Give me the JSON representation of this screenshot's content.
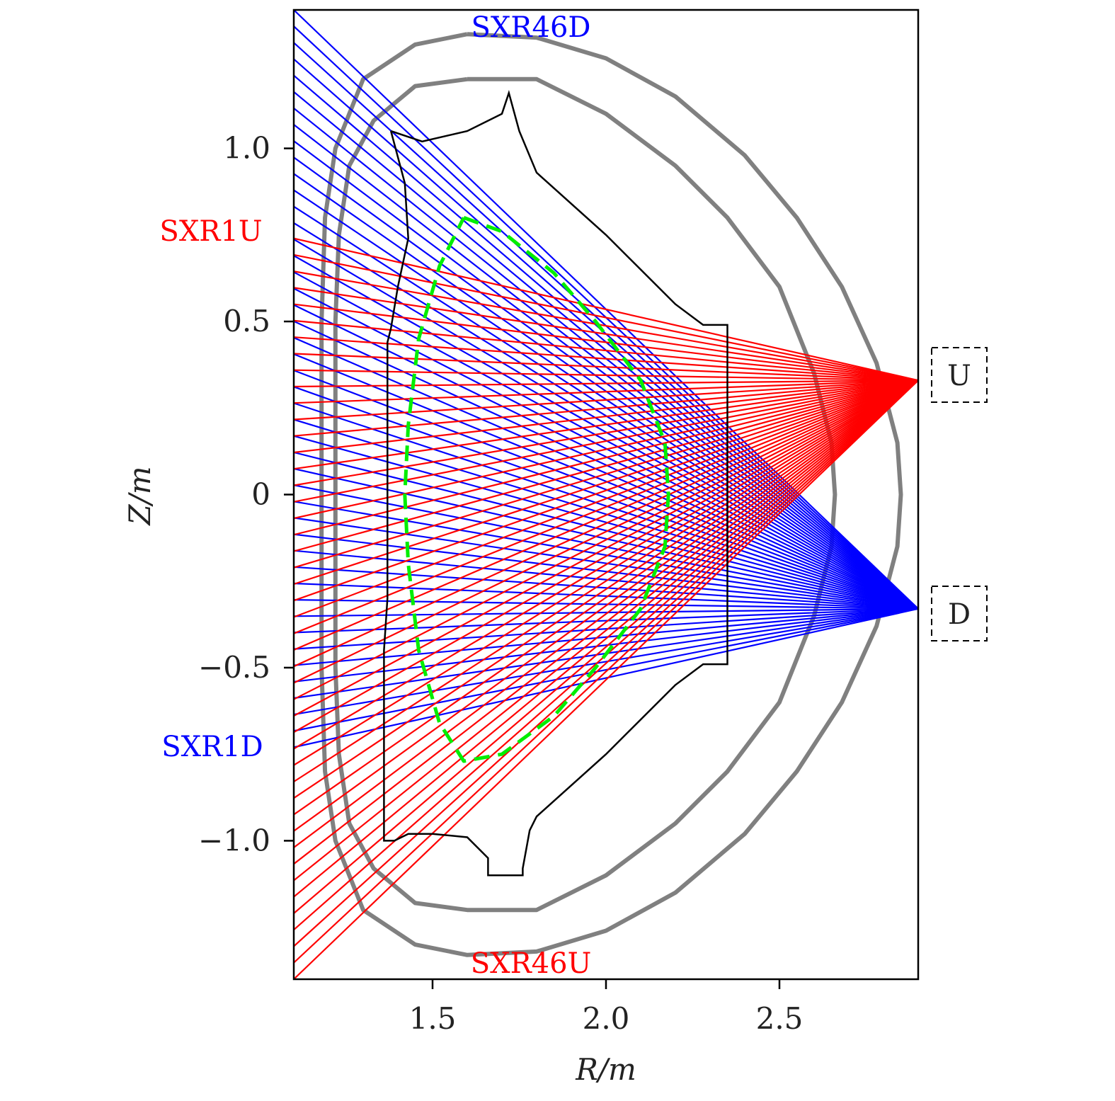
{
  "axes": {
    "xlabel": "R/m",
    "ylabel": "Z/m",
    "xlim": [
      1.1,
      2.9
    ],
    "ylim": [
      -1.4,
      1.4
    ],
    "x_ticks": [
      {
        "value": 1.5,
        "label": "1.5"
      },
      {
        "value": 2.0,
        "label": "2.0"
      },
      {
        "value": 2.5,
        "label": "2.5"
      }
    ],
    "y_ticks": [
      {
        "value": 1.0,
        "label": "1.0"
      },
      {
        "value": 0.5,
        "label": "0.5"
      },
      {
        "value": 0,
        "label": "0"
      },
      {
        "value": -0.5,
        "label": "−0.5"
      },
      {
        "value": -1.0,
        "label": "−1.0"
      }
    ]
  },
  "labels": {
    "sxr46d": "SXR46D",
    "sxr1u": "SXR1U",
    "sxr1d": "SXR1D",
    "sxr46u": "SXR46U",
    "upper_box": "U",
    "lower_box": "D"
  },
  "colors": {
    "upper_fan": "#ff0000",
    "lower_fan": "#0000ff",
    "vessel": "#808080",
    "first_wall": "#000000",
    "lcfs": "#00ee00"
  },
  "chart_data": {
    "type": "line",
    "fans": [
      {
        "id": "lower",
        "color": "#0000ff",
        "pinhole": [
          2.9,
          -0.33
        ],
        "count": 46,
        "first_point": [
          1.1,
          -0.73
        ],
        "last_point": [
          1.1,
          1.4
        ]
      },
      {
        "id": "upper",
        "color": "#ff0000",
        "pinhole": [
          2.9,
          0.33
        ],
        "count": 46,
        "first_point": [
          1.1,
          0.74
        ],
        "last_point": [
          1.1,
          -1.4
        ]
      }
    ],
    "vessel_outer": [
      [
        1.6,
        1.33
      ],
      [
        1.8,
        1.32
      ],
      [
        2.0,
        1.26
      ],
      [
        2.2,
        1.15
      ],
      [
        2.4,
        0.98
      ],
      [
        2.55,
        0.8
      ],
      [
        2.68,
        0.6
      ],
      [
        2.78,
        0.38
      ],
      [
        2.84,
        0.15
      ],
      [
        2.85,
        0.0
      ],
      [
        2.84,
        -0.15
      ],
      [
        2.78,
        -0.38
      ],
      [
        2.68,
        -0.6
      ],
      [
        2.55,
        -0.8
      ],
      [
        2.4,
        -0.98
      ],
      [
        2.2,
        -1.15
      ],
      [
        2.0,
        -1.26
      ],
      [
        1.8,
        -1.32
      ],
      [
        1.6,
        -1.33
      ],
      [
        1.45,
        -1.3
      ],
      [
        1.3,
        -1.2
      ],
      [
        1.22,
        -1.0
      ],
      [
        1.19,
        -0.8
      ],
      [
        1.18,
        -0.5
      ],
      [
        1.18,
        0.5
      ],
      [
        1.19,
        0.8
      ],
      [
        1.22,
        1.0
      ],
      [
        1.3,
        1.2
      ],
      [
        1.45,
        1.3
      ],
      [
        1.6,
        1.33
      ]
    ],
    "vessel_inner": [
      [
        1.6,
        1.2
      ],
      [
        1.8,
        1.2
      ],
      [
        2.0,
        1.1
      ],
      [
        2.2,
        0.95
      ],
      [
        2.35,
        0.8
      ],
      [
        2.5,
        0.6
      ],
      [
        2.6,
        0.35
      ],
      [
        2.65,
        0.15
      ],
      [
        2.66,
        0.0
      ],
      [
        2.65,
        -0.15
      ],
      [
        2.6,
        -0.35
      ],
      [
        2.5,
        -0.6
      ],
      [
        2.35,
        -0.8
      ],
      [
        2.2,
        -0.95
      ],
      [
        2.0,
        -1.1
      ],
      [
        1.8,
        -1.2
      ],
      [
        1.6,
        -1.2
      ],
      [
        1.45,
        -1.18
      ],
      [
        1.33,
        -1.08
      ],
      [
        1.26,
        -0.95
      ],
      [
        1.23,
        -0.75
      ],
      [
        1.22,
        -0.5
      ],
      [
        1.22,
        0.5
      ],
      [
        1.23,
        0.75
      ],
      [
        1.26,
        0.95
      ],
      [
        1.33,
        1.08
      ],
      [
        1.45,
        1.18
      ],
      [
        1.6,
        1.2
      ]
    ],
    "first_wall": [
      [
        1.38,
        1.05
      ],
      [
        1.47,
        1.02
      ],
      [
        1.6,
        1.05
      ],
      [
        1.7,
        1.1
      ],
      [
        1.72,
        1.16
      ],
      [
        1.75,
        1.05
      ],
      [
        1.8,
        0.93
      ],
      [
        2.0,
        0.75
      ],
      [
        2.2,
        0.55
      ],
      [
        2.28,
        0.49
      ],
      [
        2.35,
        0.49
      ],
      [
        2.35,
        -0.49
      ],
      [
        2.28,
        -0.49
      ],
      [
        2.2,
        -0.55
      ],
      [
        2.0,
        -0.75
      ],
      [
        1.8,
        -0.93
      ],
      [
        1.78,
        -0.97
      ],
      [
        1.76,
        -1.08
      ],
      [
        1.76,
        -1.1
      ],
      [
        1.66,
        -1.1
      ],
      [
        1.66,
        -1.05
      ],
      [
        1.6,
        -0.99
      ],
      [
        1.5,
        -0.98
      ],
      [
        1.43,
        -0.98
      ],
      [
        1.39,
        -1.0
      ],
      [
        1.36,
        -1.0
      ],
      [
        1.36,
        -0.45
      ],
      [
        1.37,
        -0.3
      ],
      [
        1.37,
        0.44
      ],
      [
        1.38,
        0.48
      ],
      [
        1.4,
        0.6
      ],
      [
        1.43,
        0.74
      ],
      [
        1.42,
        0.9
      ],
      [
        1.38,
        1.05
      ]
    ],
    "lcfs": [
      [
        1.59,
        0.8
      ],
      [
        1.7,
        0.76
      ],
      [
        1.85,
        0.64
      ],
      [
        1.97,
        0.5
      ],
      [
        2.1,
        0.33
      ],
      [
        2.17,
        0.15
      ],
      [
        2.18,
        0.0
      ],
      [
        2.17,
        -0.15
      ],
      [
        2.1,
        -0.33
      ],
      [
        1.97,
        -0.5
      ],
      [
        1.85,
        -0.64
      ],
      [
        1.7,
        -0.75
      ],
      [
        1.59,
        -0.77
      ],
      [
        1.52,
        -0.66
      ],
      [
        1.46,
        -0.45
      ],
      [
        1.43,
        -0.2
      ],
      [
        1.42,
        0.0
      ],
      [
        1.43,
        0.2
      ],
      [
        1.46,
        0.45
      ],
      [
        1.52,
        0.66
      ],
      [
        1.59,
        0.8
      ]
    ]
  }
}
